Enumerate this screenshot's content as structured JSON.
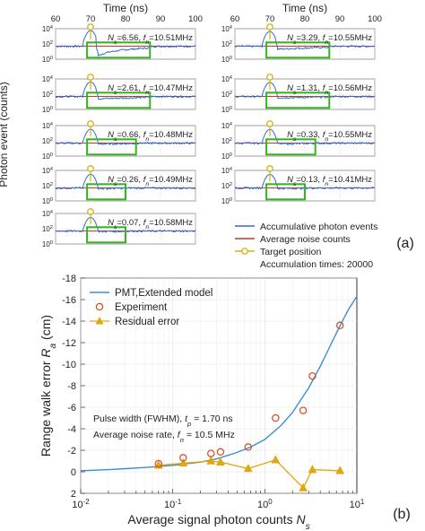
{
  "figure_labels": {
    "a": "(a)",
    "b": "(b)"
  },
  "colors": {
    "photon": "#2f6fce",
    "noise": "#c0392b",
    "target": "#d4b11a",
    "window": "#35b41f",
    "model": "#3a8fd4",
    "experiment": "#d3562a",
    "residual": "#e0a70e"
  },
  "chart_data": [
    {
      "type": "line",
      "title": "",
      "top_xlabel": "Time (ns)",
      "ylabel": "Photon event (counts)",
      "xlim": [
        60,
        100
      ],
      "xticks": [
        60,
        70,
        80,
        90,
        100
      ],
      "ylim_log": [
        1,
        10000
      ],
      "yticks": [
        "10^0",
        "10^2",
        "10^4"
      ],
      "noise_level": 50,
      "target_time": 70,
      "panels": [
        {
          "label": "N_s=6.56, f_n=10.51MHz",
          "Ns": 6.56,
          "fn": "10.51MHz",
          "window": [
            69,
            87
          ]
        },
        {
          "label": "N_s=3.29, f_n=10.55MHz",
          "Ns": 3.29,
          "fn": "10.55MHz",
          "window": [
            69,
            87
          ]
        },
        {
          "label": "N_s=2.61, f_n=10.47MHz",
          "Ns": 2.61,
          "fn": "10.47MHz",
          "window": [
            69,
            87
          ]
        },
        {
          "label": "N_s=1.31, f_n=10.56MHz",
          "Ns": 1.31,
          "fn": "10.56MHz",
          "window": [
            69,
            87
          ]
        },
        {
          "label": "N_s=0.66, f_n=10.48MHz",
          "Ns": 0.66,
          "fn": "10.48MHz",
          "window": [
            69,
            83
          ]
        },
        {
          "label": "N_s=0.33, f_n=10.55MHz",
          "Ns": 0.33,
          "fn": "10.55MHz",
          "window": [
            69,
            83
          ]
        },
        {
          "label": "N_s=0.26, f_n=10.49MHz",
          "Ns": 0.26,
          "fn": "10.49MHz",
          "window": [
            69,
            80
          ]
        },
        {
          "label": "N_s=0.13, f_n=10.41MHz",
          "Ns": 0.13,
          "fn": "10.41MHz",
          "window": [
            69,
            80
          ]
        },
        {
          "label": "N_s=0.07, f_n=10.58MHz",
          "Ns": 0.07,
          "fn": "10.58MHz",
          "window": [
            69,
            80
          ]
        }
      ],
      "legend": [
        "Accumulative photon events",
        "Average noise counts",
        "Target position"
      ],
      "note": "Accumulation times: 20000"
    },
    {
      "type": "scatter",
      "title": "",
      "xlabel": "Average signal photon counts N_s",
      "ylabel": "Range walk error R_a (cm)",
      "xscale": "log",
      "xlim": [
        0.01,
        10
      ],
      "xticks": [
        "10^-2",
        "10^-1",
        "10^0",
        "10^1"
      ],
      "ylim": [
        2,
        -18
      ],
      "yticks": [
        2,
        0,
        -2,
        -4,
        -6,
        -8,
        -10,
        -12,
        -14,
        -16,
        -18
      ],
      "y_inverted": true,
      "grid": true,
      "legend_position": "top-left",
      "series": [
        {
          "name": "PMT,Extended model",
          "kind": "line",
          "x": [
            0.01,
            0.02,
            0.05,
            0.1,
            0.2,
            0.3,
            0.5,
            0.7,
            1.0,
            1.5,
            2.0,
            3.0,
            4.0,
            5.0,
            6.5,
            8.0,
            10.0
          ],
          "y": [
            -0.1,
            -0.2,
            -0.4,
            -0.6,
            -0.9,
            -1.2,
            -1.8,
            -2.3,
            -3.0,
            -4.3,
            -5.5,
            -7.8,
            -9.8,
            -11.5,
            -13.5,
            -15.0,
            -16.3
          ]
        },
        {
          "name": "Experiment",
          "kind": "markers",
          "x": [
            0.07,
            0.13,
            0.26,
            0.33,
            0.66,
            1.31,
            2.61,
            3.29,
            6.56
          ],
          "y": [
            -0.75,
            -1.3,
            -1.7,
            -1.85,
            -2.3,
            -5.0,
            -5.7,
            -8.9,
            -13.6
          ]
        },
        {
          "name": "Residual error",
          "kind": "line-markers",
          "x": [
            0.07,
            0.13,
            0.26,
            0.33,
            0.66,
            1.31,
            2.61,
            3.29,
            6.56
          ],
          "y": [
            -0.6,
            -0.8,
            -1.0,
            -0.9,
            -0.3,
            -1.1,
            1.5,
            -0.2,
            -0.1
          ]
        }
      ],
      "annotations": [
        "Pulse width (FWHM), t_p = 1.70 ns",
        "Average noise rate, f_n = 10.5 MHz"
      ]
    }
  ]
}
